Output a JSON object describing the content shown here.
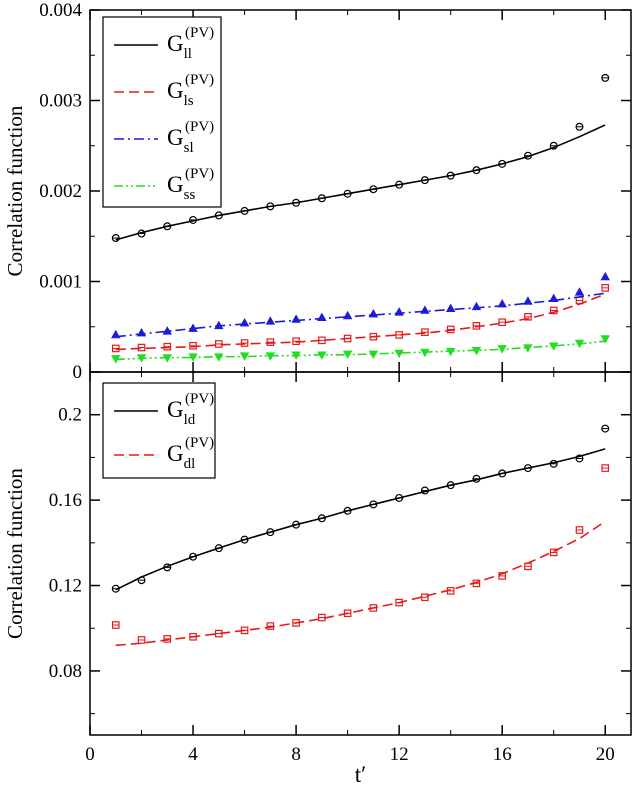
{
  "chart_data": [
    {
      "type": "line",
      "panel": "top",
      "title": "",
      "xlabel": "",
      "ylabel": "Correlation function",
      "xlim": [
        0,
        21
      ],
      "ylim": [
        0,
        0.004
      ],
      "x_ticks": [
        0,
        4,
        8,
        12,
        16,
        20
      ],
      "x_tick_labels": [
        "",
        "",
        "",
        "",
        "",
        ""
      ],
      "y_ticks": [
        0,
        0.001,
        0.002,
        0.003,
        0.004
      ],
      "y_tick_labels": [
        "0",
        "0.001",
        "0.002",
        "0.003",
        "0.004"
      ],
      "legend_position": "top-left",
      "series": [
        {
          "name": "ll",
          "legend_main": "G",
          "legend_sub": "ll",
          "legend_sup": "(PV)",
          "color": "#000000",
          "line_style": "solid",
          "marker": "circle",
          "points_x": [
            1,
            2,
            3,
            4,
            5,
            6,
            7,
            8,
            9,
            10,
            11,
            12,
            13,
            14,
            15,
            16,
            17,
            18,
            19,
            20
          ],
          "points_y": [
            0.00148,
            0.00153,
            0.00161,
            0.00168,
            0.00173,
            0.00178,
            0.00183,
            0.00187,
            0.00192,
            0.00197,
            0.00202,
            0.00207,
            0.00212,
            0.00217,
            0.00223,
            0.0023,
            0.00239,
            0.0025,
            0.00271,
            0.00325
          ],
          "curve_x": [
            1,
            2,
            3,
            4,
            5,
            6,
            7,
            8,
            9,
            10,
            11,
            12,
            13,
            14,
            15,
            16,
            17,
            18,
            19,
            20
          ],
          "curve_y": [
            0.00146,
            0.00154,
            0.00161,
            0.00167,
            0.00173,
            0.00178,
            0.00183,
            0.00187,
            0.00192,
            0.00197,
            0.00202,
            0.00207,
            0.00212,
            0.00217,
            0.00223,
            0.0023,
            0.00238,
            0.00248,
            0.0026,
            0.00273
          ]
        },
        {
          "name": "ls",
          "legend_main": "G",
          "legend_sub": "ls",
          "legend_sup": "(PV)",
          "color": "#e8191b",
          "line_style": "dashed",
          "marker": "square",
          "points_x": [
            1,
            2,
            3,
            4,
            5,
            6,
            7,
            8,
            9,
            10,
            11,
            12,
            13,
            14,
            15,
            16,
            17,
            18,
            19,
            20
          ],
          "points_y": [
            0.00026,
            0.00027,
            0.00028,
            0.00029,
            0.00031,
            0.00032,
            0.00033,
            0.00034,
            0.00035,
            0.00037,
            0.00039,
            0.00041,
            0.00044,
            0.00047,
            0.00051,
            0.00055,
            0.00061,
            0.00068,
            0.00079,
            0.00093
          ],
          "curve_x": [
            1,
            2,
            3,
            4,
            5,
            6,
            7,
            8,
            9,
            10,
            11,
            12,
            13,
            14,
            15,
            16,
            17,
            18,
            19,
            20
          ],
          "curve_y": [
            0.00025,
            0.00026,
            0.00027,
            0.00028,
            0.0003,
            0.00031,
            0.00032,
            0.00033,
            0.00035,
            0.00037,
            0.00039,
            0.00041,
            0.00043,
            0.00046,
            0.0005,
            0.00054,
            0.00059,
            0.00066,
            0.00075,
            0.00086
          ]
        },
        {
          "name": "sl",
          "legend_main": "G",
          "legend_sub": "sl",
          "legend_sup": "(PV)",
          "color": "#1b1bd9",
          "line_style": "dash-dot",
          "marker": "triangle-up",
          "points_x": [
            1,
            2,
            3,
            4,
            5,
            6,
            7,
            8,
            9,
            10,
            11,
            12,
            13,
            14,
            15,
            16,
            17,
            18,
            19,
            20
          ],
          "points_y": [
            0.00041,
            0.00043,
            0.00045,
            0.00048,
            0.00051,
            0.00054,
            0.00056,
            0.00058,
            0.0006,
            0.00062,
            0.00064,
            0.00066,
            0.00068,
            0.0007,
            0.00072,
            0.00075,
            0.00078,
            0.00081,
            0.00088,
            0.00105
          ],
          "curve_x": [
            1,
            2,
            3,
            4,
            5,
            6,
            7,
            8,
            9,
            10,
            11,
            12,
            13,
            14,
            15,
            16,
            17,
            18,
            19,
            20
          ],
          "curve_y": [
            0.00039,
            0.00042,
            0.00045,
            0.00048,
            0.00051,
            0.00053,
            0.00055,
            0.00057,
            0.00059,
            0.00061,
            0.00063,
            0.00065,
            0.00067,
            0.00069,
            0.00071,
            0.00073,
            0.00076,
            0.00079,
            0.00083,
            0.00087
          ]
        },
        {
          "name": "ss",
          "legend_main": "G",
          "legend_sub": "ss",
          "legend_sup": "(PV)",
          "color": "#22dd22",
          "line_style": "dash-dot-dot",
          "marker": "triangle-down",
          "points_x": [
            1,
            2,
            3,
            4,
            5,
            6,
            7,
            8,
            9,
            10,
            11,
            12,
            13,
            14,
            15,
            16,
            17,
            18,
            19,
            20
          ],
          "points_y": [
            0.00015,
            0.00016,
            0.00016,
            0.00017,
            0.00017,
            0.00018,
            0.00018,
            0.00019,
            0.00019,
            0.0002,
            0.0002,
            0.00021,
            0.00022,
            0.00023,
            0.00024,
            0.00026,
            0.00027,
            0.00029,
            0.00032,
            0.00037
          ],
          "curve_x": [
            1,
            2,
            3,
            4,
            5,
            6,
            7,
            8,
            9,
            10,
            11,
            12,
            13,
            14,
            15,
            16,
            17,
            18,
            19,
            20
          ],
          "curve_y": [
            0.00014,
            0.00015,
            0.00016,
            0.00016,
            0.00017,
            0.00017,
            0.00018,
            0.00018,
            0.00019,
            0.00019,
            0.0002,
            0.00021,
            0.00022,
            0.00023,
            0.00024,
            0.00025,
            0.00027,
            0.00029,
            0.00031,
            0.00034
          ]
        }
      ]
    },
    {
      "type": "line",
      "panel": "bottom",
      "title": "",
      "xlabel": "t′",
      "ylabel": "Correlation function",
      "xlim": [
        0,
        21
      ],
      "ylim": [
        0.05,
        0.22
      ],
      "x_ticks": [
        0,
        4,
        8,
        12,
        16,
        20
      ],
      "x_tick_labels": [
        "0",
        "4",
        "8",
        "12",
        "16",
        "20"
      ],
      "y_ticks": [
        0.08,
        0.12,
        0.16,
        0.2
      ],
      "y_tick_labels": [
        "0.08",
        "0.12",
        "0.16",
        "0.2"
      ],
      "legend_position": "top-left",
      "series": [
        {
          "name": "ld",
          "legend_main": "G",
          "legend_sub": "ld",
          "legend_sup": "(PV)",
          "color": "#000000",
          "line_style": "solid",
          "marker": "circle",
          "points_x": [
            1,
            2,
            3,
            4,
            5,
            6,
            7,
            8,
            9,
            10,
            11,
            12,
            13,
            14,
            15,
            16,
            17,
            18,
            19,
            20
          ],
          "points_y": [
            0.1185,
            0.1225,
            0.1285,
            0.1335,
            0.1375,
            0.1415,
            0.145,
            0.1485,
            0.1515,
            0.155,
            0.158,
            0.161,
            0.1645,
            0.167,
            0.17,
            0.1725,
            0.175,
            0.177,
            0.1795,
            0.1935
          ],
          "curve_x": [
            1,
            2,
            3,
            4,
            5,
            6,
            7,
            8,
            9,
            10,
            11,
            12,
            13,
            14,
            15,
            16,
            17,
            18,
            19,
            20
          ],
          "curve_y": [
            0.118,
            0.124,
            0.129,
            0.1335,
            0.1375,
            0.1415,
            0.145,
            0.1485,
            0.1515,
            0.155,
            0.158,
            0.161,
            0.164,
            0.167,
            0.1695,
            0.1725,
            0.175,
            0.1775,
            0.1805,
            0.184
          ]
        },
        {
          "name": "dl",
          "legend_main": "G",
          "legend_sub": "dl",
          "legend_sup": "(PV)",
          "color": "#e8191b",
          "line_style": "dashed",
          "marker": "square",
          "points_x": [
            1,
            2,
            3,
            4,
            5,
            6,
            7,
            8,
            9,
            10,
            11,
            12,
            13,
            14,
            15,
            16,
            17,
            18,
            19,
            20
          ],
          "points_y": [
            0.1015,
            0.0945,
            0.095,
            0.096,
            0.0975,
            0.099,
            0.101,
            0.1025,
            0.105,
            0.107,
            0.1095,
            0.112,
            0.1145,
            0.1175,
            0.121,
            0.1245,
            0.129,
            0.1355,
            0.146,
            0.175
          ],
          "curve_x": [
            1,
            2,
            3,
            4,
            5,
            6,
            7,
            8,
            9,
            10,
            11,
            12,
            13,
            14,
            15,
            16,
            17,
            18,
            19,
            20
          ],
          "curve_y": [
            0.092,
            0.093,
            0.0945,
            0.096,
            0.0975,
            0.099,
            0.1005,
            0.1025,
            0.1045,
            0.107,
            0.1095,
            0.112,
            0.115,
            0.118,
            0.1215,
            0.1255,
            0.1305,
            0.136,
            0.142,
            0.15
          ]
        }
      ]
    }
  ]
}
